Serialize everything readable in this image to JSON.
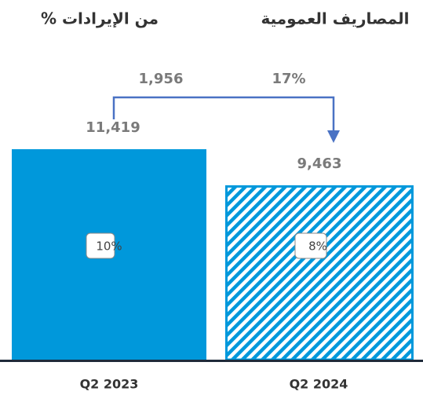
{
  "chart_data": {
    "type": "bar",
    "title": "المصاريف العمومية",
    "subtitle": "من الإيرادات %",
    "categories": [
      "Q2 2023",
      "Q2 2024"
    ],
    "values": [
      11419,
      9463
    ],
    "value_labels": [
      "11,419",
      "9,463"
    ],
    "color": "#0098db",
    "bar_styles": [
      "solid",
      "hatched"
    ],
    "share_of_revenue": {
      "values": [
        10,
        8
      ],
      "value_labels": [
        "10%",
        "8%"
      ]
    },
    "annotations": [
      {
        "text": "1,956"
      },
      {
        "text": "17%"
      }
    ],
    "arrow_color": "#4a72c4"
  }
}
